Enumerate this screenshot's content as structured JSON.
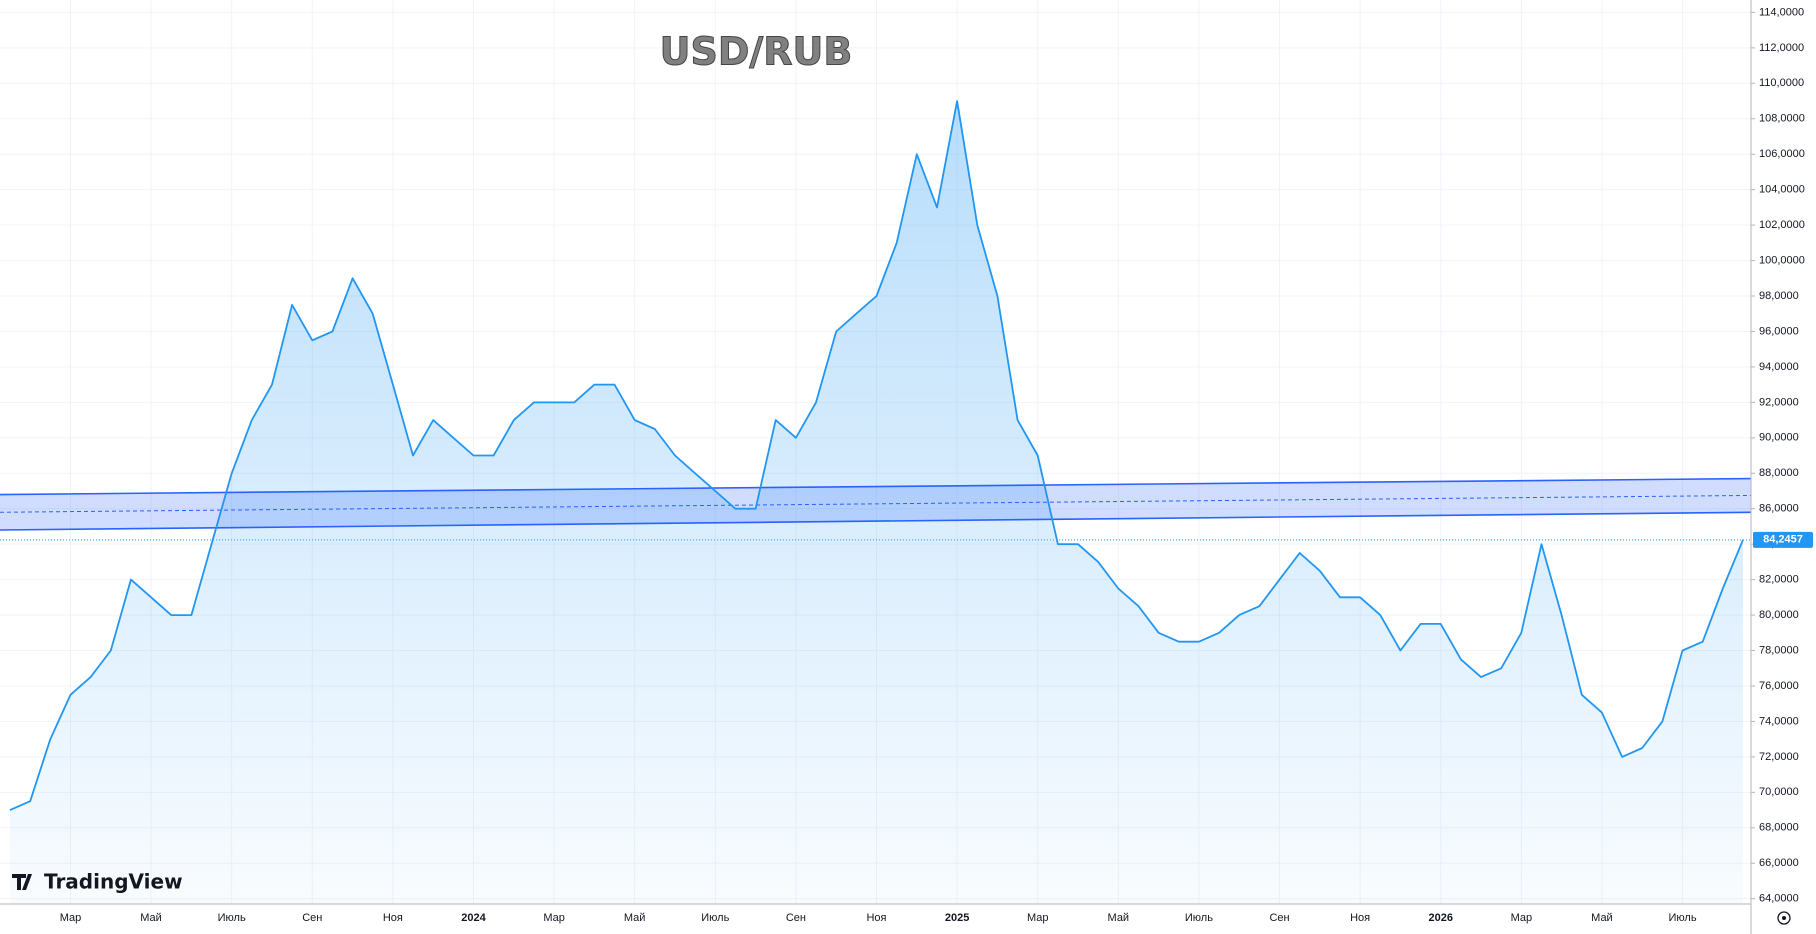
{
  "chart_data": {
    "type": "line",
    "title": "USD/RUB",
    "watermark": "TradingView",
    "categories": [
      null,
      null,
      null,
      "Мар",
      null,
      null,
      null,
      "Май",
      null,
      null,
      null,
      "Июль",
      null,
      null,
      null,
      "Сен",
      null,
      null,
      null,
      "Ноя",
      null,
      null,
      null,
      "2024",
      null,
      null,
      null,
      "Мар",
      null,
      null,
      null,
      "Май",
      null,
      null,
      null,
      "Июль",
      null,
      null,
      null,
      "Сен",
      null,
      null,
      null,
      "Ноя",
      null,
      null,
      null,
      "2025",
      null,
      null,
      null,
      "Мар",
      null,
      null,
      null,
      "Май",
      null,
      null,
      null,
      "Июль",
      null,
      null,
      null,
      "Сен",
      null,
      null,
      null,
      "Ноя",
      null,
      null,
      null,
      "2026",
      null,
      null,
      null,
      "Мар",
      null,
      null,
      null,
      "Май",
      null,
      null,
      null,
      "Июль",
      null,
      null,
      null
    ],
    "series": [
      {
        "name": "USD/RUB",
        "color": "#2196f3",
        "values": [
          69,
          69.5,
          73,
          75.5,
          76.5,
          78,
          82,
          81,
          80,
          80,
          84,
          88,
          91,
          93,
          97.5,
          95.5,
          96,
          99,
          97,
          93,
          89,
          91,
          90,
          89,
          89,
          91,
          92,
          92,
          92,
          93,
          93,
          91,
          90.5,
          89,
          88,
          87,
          86,
          86,
          91,
          90,
          92,
          96,
          97,
          98,
          101,
          106,
          103,
          109,
          102,
          98,
          91,
          89,
          84,
          84,
          83,
          81.5,
          80.5,
          79,
          78.5,
          78.5,
          79,
          80,
          80.5,
          82,
          83.5,
          82.5,
          81,
          81,
          80,
          78,
          79.5,
          79.5,
          77.5,
          76.5,
          77,
          79,
          84,
          80,
          75.5,
          74.5,
          72,
          72.5,
          74,
          78,
          78.5,
          81.5,
          84.2457
        ],
        "last_value_label": "84,2457"
      }
    ],
    "channel": {
      "upper": [
        86.8,
        87.7
      ],
      "middle": [
        85.8,
        86.75
      ],
      "lower": [
        84.8,
        85.8
      ]
    },
    "ylim": [
      63.7,
      114.7
    ],
    "yticks": [
      {
        "value": 64,
        "label": "64,0000"
      },
      {
        "value": 66,
        "label": "66,0000"
      },
      {
        "value": 68,
        "label": "68,0000"
      },
      {
        "value": 70,
        "label": "70,0000"
      },
      {
        "value": 72,
        "label": "72,0000"
      },
      {
        "value": 74,
        "label": "74,0000"
      },
      {
        "value": 76,
        "label": "76,0000"
      },
      {
        "value": 78,
        "label": "78,0000"
      },
      {
        "value": 80,
        "label": "80,0000"
      },
      {
        "value": 82,
        "label": "82,0000"
      },
      {
        "value": 84,
        "label": "84,0000"
      },
      {
        "value": 86,
        "label": "86,0000"
      },
      {
        "value": 88,
        "label": "88,0000"
      },
      {
        "value": 90,
        "label": "90,0000"
      },
      {
        "value": 92,
        "label": "92,0000"
      },
      {
        "value": 94,
        "label": "94,0000"
      },
      {
        "value": 96,
        "label": "96,0000"
      },
      {
        "value": 98,
        "label": "98,0000"
      },
      {
        "value": 100,
        "label": "100,0000"
      },
      {
        "value": 102,
        "label": "102,0000"
      },
      {
        "value": 104,
        "label": "104,0000"
      },
      {
        "value": 106,
        "label": "106,0000"
      },
      {
        "value": 108,
        "label": "108,0000"
      },
      {
        "value": 110,
        "label": "110,0000"
      },
      {
        "value": 112,
        "label": "112,0000"
      },
      {
        "value": 114,
        "label": "114,0000"
      }
    ],
    "grid": true
  }
}
